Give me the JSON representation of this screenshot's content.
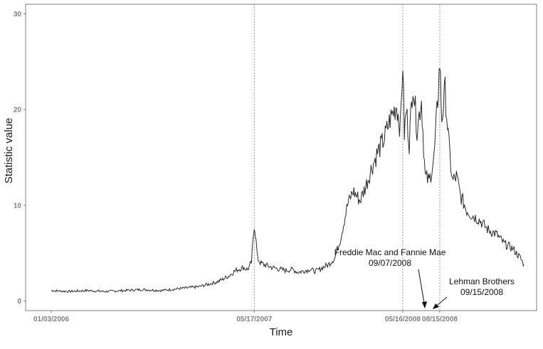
{
  "chart_data": {
    "type": "line",
    "title": "",
    "xlabel": "Time",
    "ylabel": "Statistic value",
    "ylim": [
      -1,
      31
    ],
    "y_ticks": [
      0,
      10,
      20,
      30
    ],
    "x_ticks": [
      {
        "label": "01/03/2006",
        "date": "2006-01-03"
      },
      {
        "label": "05/17/2007",
        "date": "2007-05-17"
      },
      {
        "label": "05/16/2008",
        "date": "2008-05-16"
      },
      {
        "label": "08/15/2008",
        "date": "2008-08-15"
      }
    ],
    "xlim": [
      "2005-11-01",
      "2009-04-10"
    ],
    "grid": false,
    "vlines": [
      "2007-05-17",
      "2008-05-16",
      "2008-08-15"
    ],
    "series": [
      {
        "x": [
          "2006-01-03",
          "2006-02-15",
          "2006-04-01",
          "2006-05-15",
          "2006-07-01",
          "2006-08-15",
          "2006-10-01",
          "2006-11-15",
          "2007-01-01",
          "2007-02-15",
          "2007-03-15",
          "2007-04-01",
          "2007-04-20",
          "2007-05-01",
          "2007-05-10",
          "2007-05-17",
          "2007-05-20",
          "2007-05-25",
          "2007-06-01",
          "2007-06-10",
          "2007-07-01",
          "2007-08-01",
          "2007-08-20",
          "2007-09-01",
          "2007-10-01",
          "2007-10-15",
          "2007-11-01",
          "2007-11-15",
          "2007-12-01",
          "2007-12-15",
          "2008-01-01",
          "2008-01-15",
          "2008-02-01",
          "2008-02-15",
          "2008-03-01",
          "2008-03-15",
          "2008-04-01",
          "2008-04-15",
          "2008-05-01",
          "2008-05-10",
          "2008-05-16",
          "2008-05-20",
          "2008-05-25",
          "2008-06-01",
          "2008-06-10",
          "2008-06-20",
          "2008-07-01",
          "2008-07-10",
          "2008-07-20",
          "2008-08-01",
          "2008-08-10",
          "2008-08-15",
          "2008-08-20",
          "2008-08-28",
          "2008-09-07",
          "2008-09-15",
          "2008-09-25",
          "2008-10-05",
          "2008-10-20",
          "2008-11-01",
          "2008-11-20",
          "2008-12-10",
          "2009-01-01",
          "2009-01-20",
          "2009-02-10",
          "2009-03-01",
          "2009-03-10"
        ],
        "y": [
          1.1,
          1.0,
          1.1,
          1.0,
          1.1,
          1.2,
          1.1,
          1.3,
          1.5,
          2.0,
          2.6,
          3.2,
          3.5,
          3.3,
          4.0,
          8.0,
          7.0,
          4.5,
          4.0,
          3.8,
          3.5,
          3.2,
          3.3,
          3.0,
          3.3,
          3.1,
          3.5,
          3.8,
          4.5,
          6.5,
          10.0,
          11.5,
          10.5,
          12.0,
          14.0,
          15.5,
          17.0,
          19.0,
          20.5,
          18.0,
          25.0,
          17.5,
          20.0,
          16.5,
          23.0,
          18.0,
          21.0,
          13.0,
          12.5,
          15.0,
          21.0,
          25.0,
          19.0,
          22.0,
          16.0,
          12.5,
          13.0,
          11.0,
          9.5,
          9.0,
          8.5,
          7.5,
          7.0,
          6.0,
          5.5,
          4.5,
          3.8
        ]
      }
    ],
    "annotations": [
      {
        "lines": [
          "Freddie Mac and Fannie Mae",
          "09/07/2008"
        ],
        "points_to": "2008-08-13"
      },
      {
        "lines": [
          "Lehman Brothers",
          "09/15/2008"
        ],
        "points_to": "2008-08-20"
      }
    ]
  }
}
